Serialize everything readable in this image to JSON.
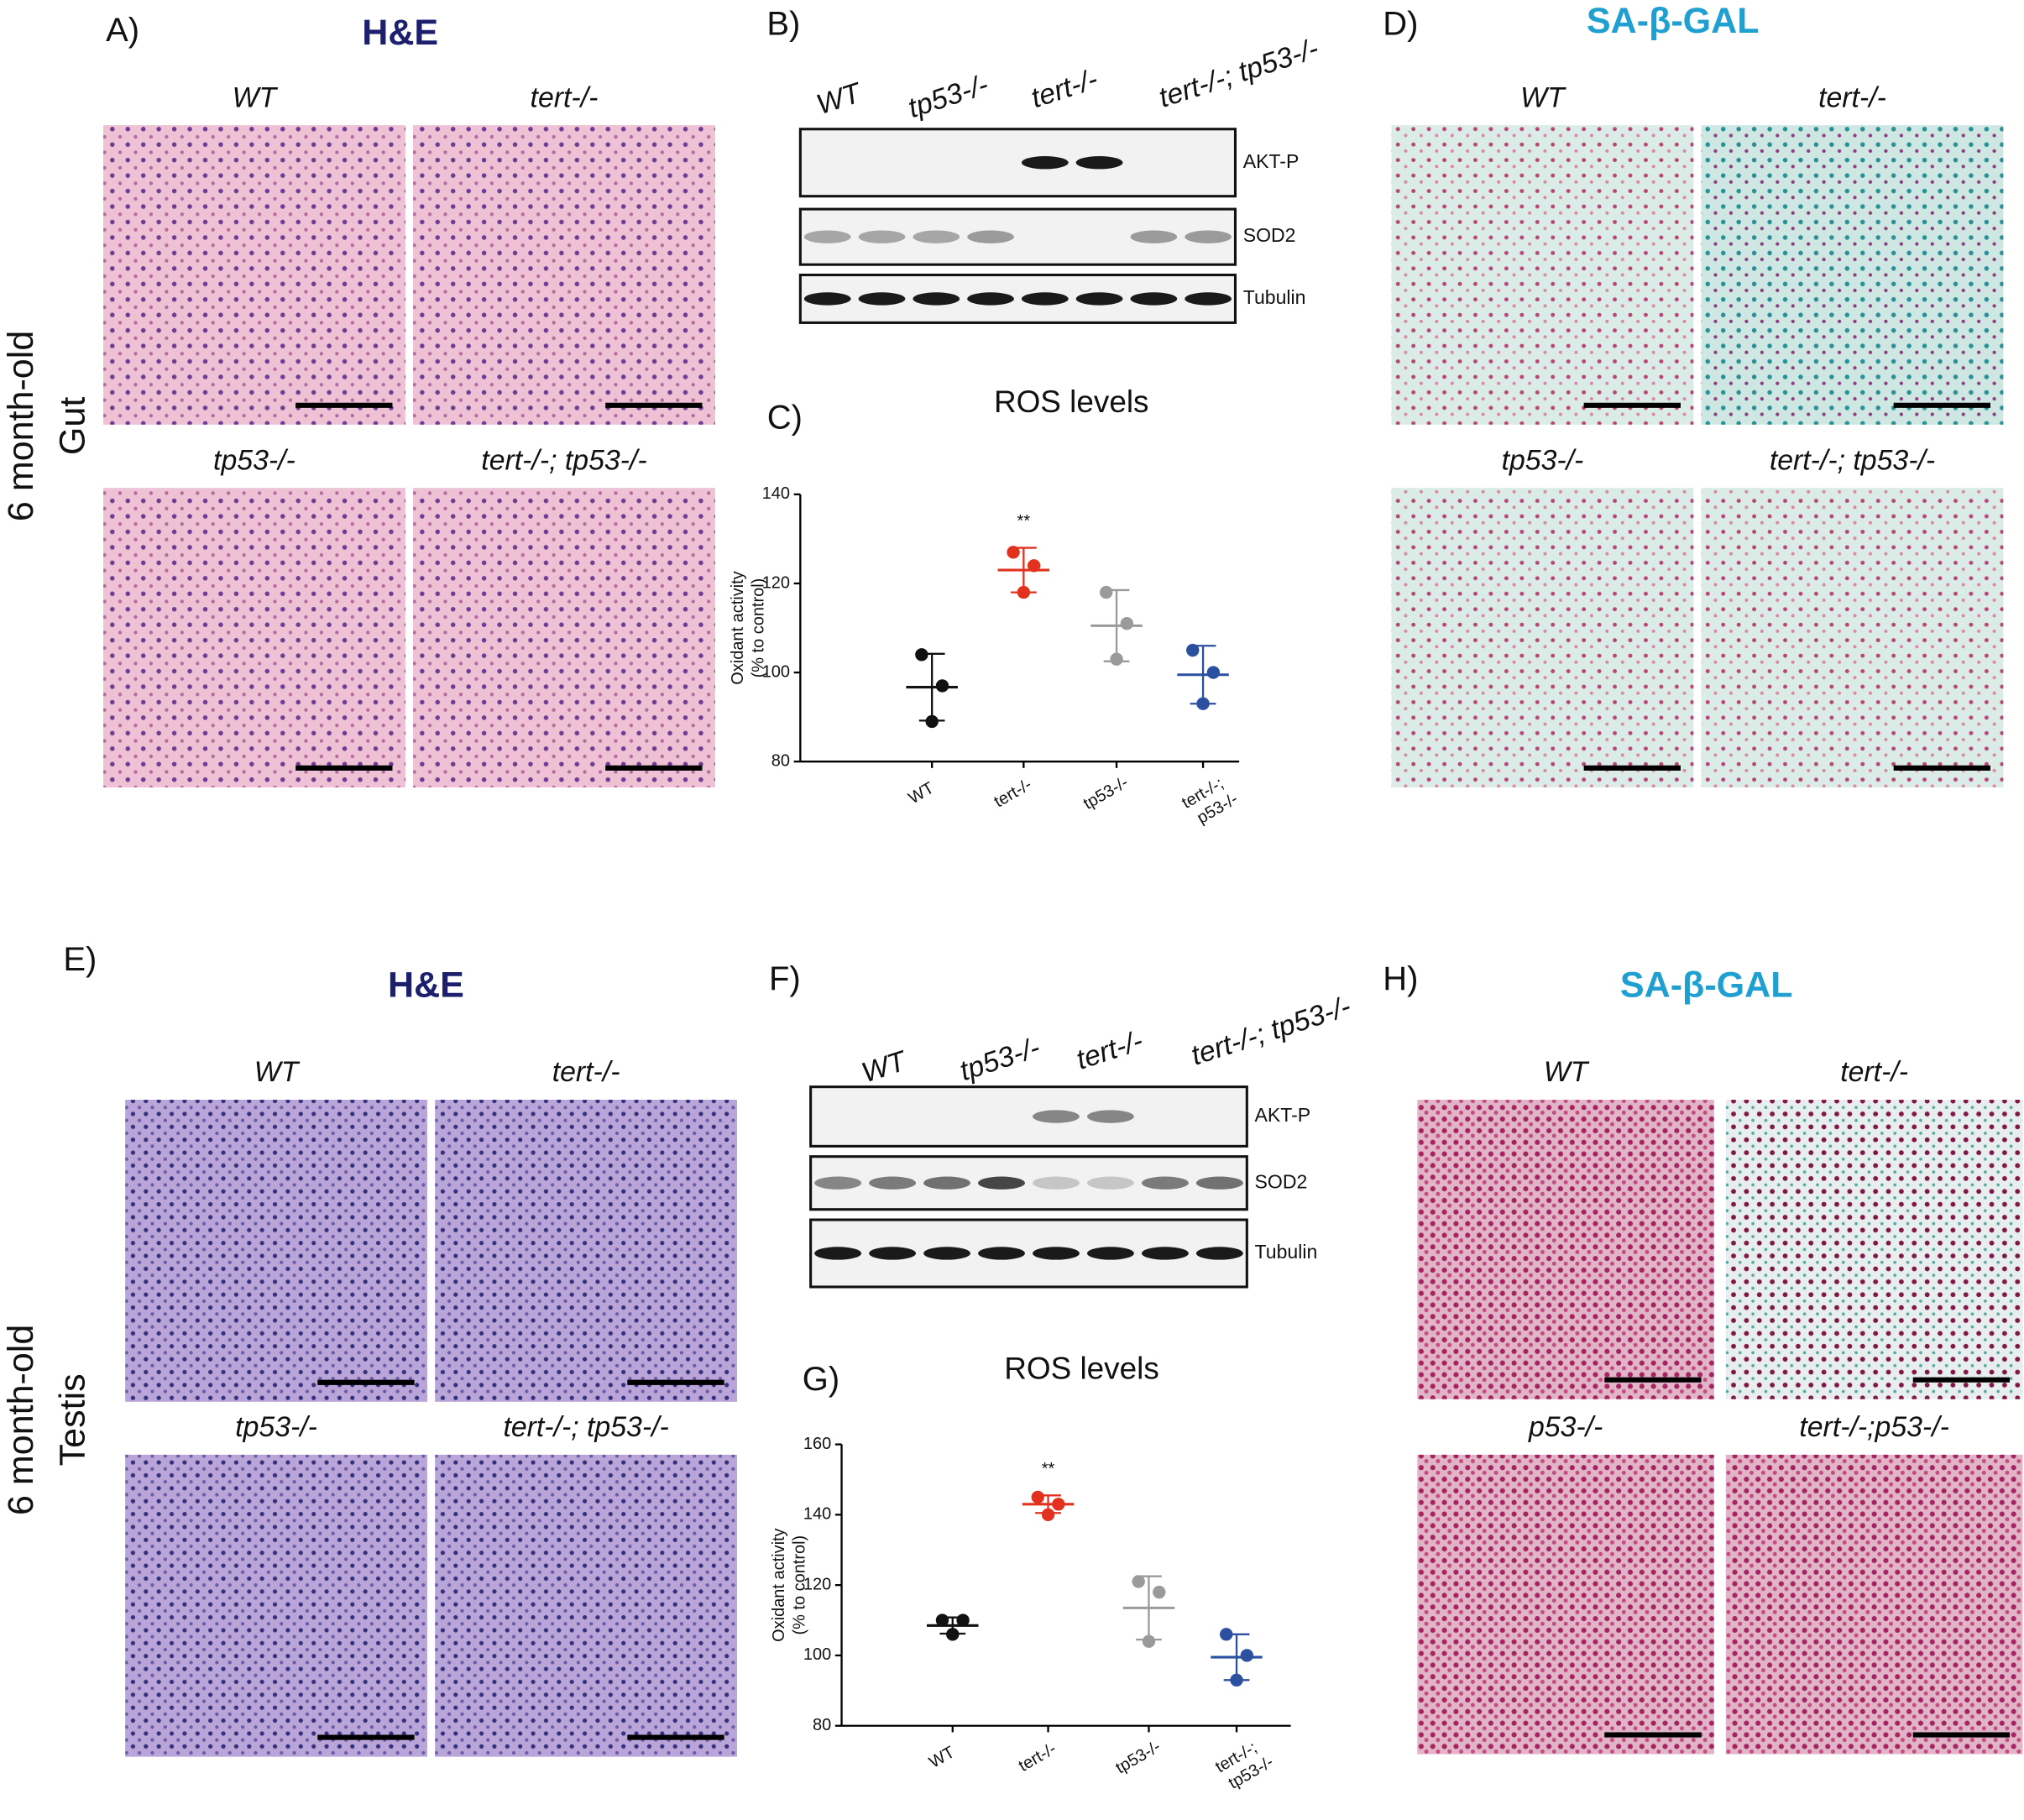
{
  "row_labels": [
    [
      "6 month-old",
      "Gut"
    ],
    [
      "6 month-old",
      "Testis"
    ]
  ],
  "panels": {
    "A": {
      "letter": "A)",
      "title": "H&E",
      "labels": [
        "WT",
        "tert-/-",
        "tp53-/-",
        "tert-/-; tp53-/-"
      ]
    },
    "B": {
      "letter": "B)",
      "lanes": [
        "WT",
        "tp53-/-",
        "tert-/-",
        "tert-/-; tp53-/-"
      ],
      "blots": [
        "AKT-P",
        "SOD2",
        "Tubulin"
      ]
    },
    "D": {
      "letter": "D)",
      "title": "SA-β-GAL",
      "labels": [
        "WT",
        "tert-/-",
        "tp53-/-",
        "tert-/-; tp53-/-"
      ]
    },
    "E": {
      "letter": "E)",
      "title": "H&E",
      "labels": [
        "WT",
        "tert-/-",
        "tp53-/-",
        "tert-/-; tp53-/-"
      ]
    },
    "F": {
      "letter": "F)",
      "lanes": [
        "WT",
        "tp53-/-",
        "tert-/-",
        "tert-/-; tp53-/-"
      ],
      "blots": [
        "AKT-P",
        "SOD2",
        "Tubulin"
      ]
    },
    "H": {
      "letter": "H)",
      "title": "SA-β-GAL",
      "labels": [
        "WT",
        "tert-/-",
        "p53-/-",
        "tert-/-;p53-/-"
      ]
    }
  },
  "chart_data": [
    {
      "type": "dot-plot",
      "letter": "C)",
      "title": "ROS levels",
      "ylabel": [
        "Oxidant activity",
        "(% to control)"
      ],
      "categories": [
        "WT",
        "tert-/-",
        "tp53-/-",
        [
          "tert-/-;",
          "p53-/-"
        ]
      ],
      "colors": [
        "#111111",
        "#e2321f",
        "#9a9a9a",
        "#2b50a0"
      ],
      "label_colors": [
        "#111111",
        "#e2321f",
        "#111111",
        "#111111"
      ],
      "points": [
        [
          104,
          97,
          89
        ],
        [
          127,
          124,
          118
        ],
        [
          118,
          111,
          103
        ],
        [
          105,
          100,
          93
        ]
      ],
      "means": [
        96.7,
        123,
        110.5,
        99.5
      ],
      "sd": [
        7.5,
        5,
        8,
        6.5
      ],
      "annotation": "**",
      "ylim": [
        80,
        140
      ],
      "yticks": [
        80,
        100,
        120,
        140
      ]
    },
    {
      "type": "dot-plot",
      "letter": "G)",
      "title": "ROS levels",
      "ylabel": [
        "Oxidant activity",
        "(% to control)"
      ],
      "categories": [
        "WT",
        "tert-/-",
        "tp53-/-",
        [
          "tert-/-;",
          "tp53-/-"
        ]
      ],
      "colors": [
        "#111111",
        "#e2321f",
        "#9a9a9a",
        "#2b50a0"
      ],
      "label_colors": [
        "#111111",
        "#e2321f",
        "#111111",
        "#111111"
      ],
      "points": [
        [
          110,
          110,
          106
        ],
        [
          145,
          143,
          140
        ],
        [
          121,
          118,
          104
        ],
        [
          106,
          100,
          93
        ]
      ],
      "means": [
        108.5,
        143,
        113.5,
        99.5
      ],
      "sd": [
        2.3,
        2.5,
        9,
        6.5
      ],
      "annotation": "**",
      "ylim": [
        80,
        160
      ],
      "yticks": [
        80,
        100,
        120,
        140,
        160
      ]
    }
  ]
}
